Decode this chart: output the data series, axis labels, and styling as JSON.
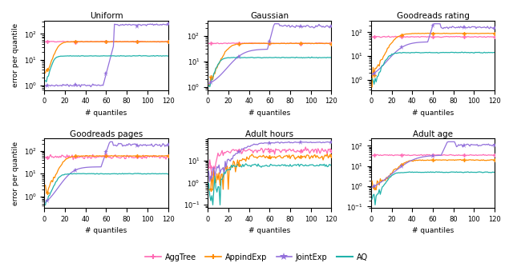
{
  "titles": [
    "Uniform",
    "Gaussian",
    "Goodreads rating",
    "Goodreads pages",
    "Adult hours",
    "Adult age"
  ],
  "xlabel": "# quantiles",
  "ylabel": "error per quantile",
  "legend_labels": [
    "AggTree",
    "AppindExp",
    "JointExp",
    "AQ"
  ],
  "colors": {
    "AggTree": "#ff69b4",
    "AppindExp": "#ff8c00",
    "JointExp": "#9370db",
    "AQ": "#20b2aa"
  },
  "figsize": [
    6.4,
    3.39
  ],
  "dpi": 100
}
